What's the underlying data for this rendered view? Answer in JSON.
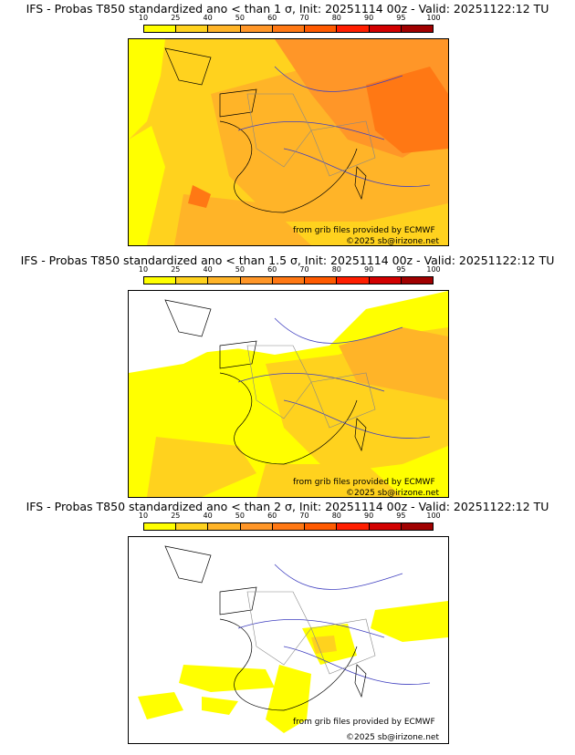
{
  "colorbar": {
    "ticks": [
      "10",
      "25",
      "40",
      "50",
      "60",
      "70",
      "80",
      "90",
      "95",
      "100"
    ],
    "colors": [
      "#ffff00",
      "#ffd21e",
      "#ffb428",
      "#ff9628",
      "#ff7814",
      "#ff5a00",
      "#ff1e00",
      "#d20000",
      "#a00000"
    ]
  },
  "credits": {
    "source": "from grib files provided by ECMWF",
    "copyright": "©2025 sb@irizone.net"
  },
  "panels": [
    {
      "title": "IFS - Probas T850  standardized ano < than 1 σ, Init: 20251114 00z - Valid: 20251122:12 TU",
      "level": "high",
      "dominant_colors": [
        "#ffb428",
        "#ff9628",
        "#ff7814"
      ]
    },
    {
      "title": "IFS - Probas T850  standardized ano < than 1.5 σ, Init: 20251114 00z - Valid: 20251122:12 TU",
      "level": "medium",
      "dominant_colors": [
        "#ffff00",
        "#ffd21e",
        "#ffb428"
      ]
    },
    {
      "title": "IFS - Probas T850  standardized ano < than 2 σ, Init: 20251114 00z - Valid: 20251122:12 TU",
      "level": "low",
      "dominant_colors": [
        "#ffffff",
        "#ffff00",
        "#ffd21e"
      ]
    }
  ]
}
